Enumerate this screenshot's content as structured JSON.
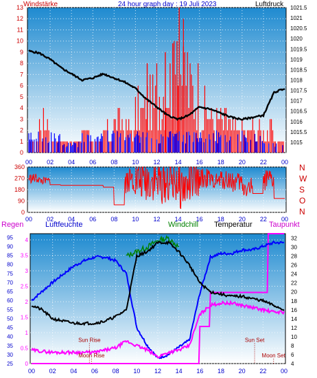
{
  "colors": {
    "wind_speed": "#ff0000",
    "wind_gust": "#0000ff",
    "pressure": "#000000",
    "wind_dir": "#ff0000",
    "humidity": "#0000ff",
    "windchill": "#008000",
    "temperature": "#000000",
    "dewpoint": "#ff00ff",
    "rain": "#ff00ff",
    "sun_moon": "#aa0000",
    "axis_red": "#cc0000",
    "axis_blue": "#0000cc",
    "panel_top": "#1e8ad0",
    "panel_bottom": "#ffffff"
  },
  "chart_data": [
    {
      "type": "bar",
      "title": "24 hour graph day : 19 Juli 2023",
      "left_label": "Windstärke",
      "right_label": "Luftdruck",
      "x_ticks": [
        "00",
        "02",
        "04",
        "06",
        "08",
        "10",
        "12",
        "14",
        "16",
        "18",
        "20",
        "22",
        "00"
      ],
      "left_ticks": [
        "0",
        "1",
        "2",
        "3",
        "4",
        "5",
        "6",
        "7",
        "8",
        "9",
        "10",
        "11",
        "12",
        "13"
      ],
      "right_ticks": [
        "1015",
        "1015.5",
        "1016",
        "1016.5",
        "1017",
        "1017.5",
        "1018",
        "1018.5",
        "1019",
        "1019.5",
        "1020",
        "1020.5",
        "1021",
        "1021.5"
      ],
      "ylim_left": [
        0,
        13
      ],
      "ylim_right": [
        1014.5,
        1021.5
      ],
      "grid": true,
      "wind_speed_hourly": [
        1,
        3,
        1,
        1,
        1,
        2,
        1,
        2,
        3,
        2,
        4,
        5,
        6,
        7,
        8,
        6,
        4,
        3,
        3,
        2,
        2,
        2,
        2,
        1,
        1
      ],
      "wind_gust_hourly": [
        2,
        2,
        2,
        1,
        1,
        2,
        2,
        2,
        2,
        2,
        2,
        2,
        2,
        2,
        2,
        2,
        2,
        2,
        2,
        2,
        2,
        2,
        1,
        1,
        1
      ],
      "pressure_series": [
        {
          "h": 0,
          "v": 1019.4
        },
        {
          "h": 1,
          "v": 1019.3
        },
        {
          "h": 2,
          "v": 1019.0
        },
        {
          "h": 3,
          "v": 1018.6
        },
        {
          "h": 4,
          "v": 1018.3
        },
        {
          "h": 5,
          "v": 1018.0
        },
        {
          "h": 6,
          "v": 1018.1
        },
        {
          "h": 7,
          "v": 1018.3
        },
        {
          "h": 8,
          "v": 1018.1
        },
        {
          "h": 9,
          "v": 1017.9
        },
        {
          "h": 10,
          "v": 1017.6
        },
        {
          "h": 11,
          "v": 1017.1
        },
        {
          "h": 12,
          "v": 1016.7
        },
        {
          "h": 13,
          "v": 1016.3
        },
        {
          "h": 14,
          "v": 1016.1
        },
        {
          "h": 15,
          "v": 1016.3
        },
        {
          "h": 16,
          "v": 1016.7
        },
        {
          "h": 17,
          "v": 1016.6
        },
        {
          "h": 18,
          "v": 1016.4
        },
        {
          "h": 19,
          "v": 1016.2
        },
        {
          "h": 20,
          "v": 1016.1
        },
        {
          "h": 21,
          "v": 1016.2
        },
        {
          "h": 22,
          "v": 1016.3
        },
        {
          "h": 23,
          "v": 1017.4
        },
        {
          "h": 24,
          "v": 1017.6
        }
      ]
    },
    {
      "type": "scatter",
      "title": "",
      "y_ticks": [
        "0",
        "90",
        "180",
        "270",
        "360"
      ],
      "direction_labels": [
        "N",
        "W",
        "S",
        "O",
        "N"
      ],
      "ylim": [
        0,
        360
      ],
      "x_ticks": [
        "00",
        "02",
        "04",
        "06",
        "08",
        "10",
        "12",
        "14",
        "16",
        "18",
        "20",
        "22",
        "00"
      ],
      "direction_hourly_mean": [
        270,
        250,
        220,
        215,
        215,
        215,
        215,
        200,
        60,
        260,
        250,
        260,
        240,
        250,
        200,
        230,
        270,
        250,
        260,
        240,
        200,
        150,
        250,
        110,
        120
      ],
      "direction_hourly_spread": [
        40,
        30,
        0,
        0,
        0,
        0,
        0,
        0,
        0,
        110,
        160,
        180,
        180,
        180,
        180,
        150,
        80,
        60,
        80,
        80,
        90,
        0,
        90,
        0,
        0
      ]
    },
    {
      "type": "line",
      "labels": {
        "rain": "Regen",
        "humidity": "Luftfeuchte",
        "windchill": "Windchill",
        "temperature": "Temperatur",
        "dewpoint": "Taupunkt"
      },
      "rain_ticks": [
        "0",
        "0.5",
        "1",
        "1.5",
        "2",
        "2.5",
        "3",
        "3.5",
        "4"
      ],
      "hum_ticks": [
        "25",
        "30",
        "35",
        "40",
        "45",
        "50",
        "55",
        "60",
        "65",
        "70",
        "75",
        "80",
        "85",
        "90",
        "95"
      ],
      "temp_ticks": [
        "4",
        "6",
        "8",
        "10",
        "12",
        "14",
        "16",
        "18",
        "20",
        "22",
        "24",
        "26",
        "28",
        "30",
        "32"
      ],
      "x_ticks": [
        "00",
        "02",
        "04",
        "06",
        "08",
        "10",
        "12",
        "14",
        "16",
        "18",
        "20",
        "22",
        "00"
      ],
      "ylim_rain": [
        0,
        4.2
      ],
      "ylim_hum": [
        25,
        97
      ],
      "ylim_temp": [
        4,
        33
      ],
      "humidity": [
        {
          "h": 0,
          "v": 60
        },
        {
          "h": 2,
          "v": 70
        },
        {
          "h": 4,
          "v": 79
        },
        {
          "h": 5,
          "v": 82
        },
        {
          "h": 6,
          "v": 84
        },
        {
          "h": 7,
          "v": 84
        },
        {
          "h": 8,
          "v": 82
        },
        {
          "h": 9,
          "v": 75
        },
        {
          "h": 10,
          "v": 45
        },
        {
          "h": 11,
          "v": 35
        },
        {
          "h": 12,
          "v": 28
        },
        {
          "h": 13,
          "v": 30
        },
        {
          "h": 14,
          "v": 34
        },
        {
          "h": 15,
          "v": 38
        },
        {
          "h": 16,
          "v": 64
        },
        {
          "h": 17,
          "v": 84
        },
        {
          "h": 18,
          "v": 86
        },
        {
          "h": 19,
          "v": 86
        },
        {
          "h": 20,
          "v": 88
        },
        {
          "h": 21,
          "v": 88
        },
        {
          "h": 22,
          "v": 90
        },
        {
          "h": 23,
          "v": 92
        },
        {
          "h": 24,
          "v": 92
        }
      ],
      "temperature": [
        {
          "h": 0,
          "v": 17
        },
        {
          "h": 1,
          "v": 16
        },
        {
          "h": 2,
          "v": 14
        },
        {
          "h": 3,
          "v": 13.5
        },
        {
          "h": 4,
          "v": 13
        },
        {
          "h": 5,
          "v": 13
        },
        {
          "h": 6,
          "v": 13
        },
        {
          "h": 7,
          "v": 13.5
        },
        {
          "h": 8,
          "v": 14.5
        },
        {
          "h": 9,
          "v": 16
        },
        {
          "h": 10,
          "v": 28
        },
        {
          "h": 11,
          "v": 29
        },
        {
          "h": 12,
          "v": 31
        },
        {
          "h": 13,
          "v": 31
        },
        {
          "h": 14,
          "v": 29
        },
        {
          "h": 15,
          "v": 26
        },
        {
          "h": 16,
          "v": 22
        },
        {
          "h": 17,
          "v": 20
        },
        {
          "h": 18,
          "v": 19.5
        },
        {
          "h": 19,
          "v": 19
        },
        {
          "h": 20,
          "v": 19
        },
        {
          "h": 21,
          "v": 18.5
        },
        {
          "h": 22,
          "v": 18
        },
        {
          "h": 23,
          "v": 17
        },
        {
          "h": 24,
          "v": 16
        }
      ],
      "windchill": [
        {
          "h": 9,
          "v": 28
        },
        {
          "h": 10,
          "v": 29
        },
        {
          "h": 11,
          "v": 30
        },
        {
          "h": 12,
          "v": 31.5
        },
        {
          "h": 13,
          "v": 32
        },
        {
          "h": 14,
          "v": 30
        }
      ],
      "dewpoint": [
        {
          "h": 0,
          "v": 7
        },
        {
          "h": 2,
          "v": 6.5
        },
        {
          "h": 4,
          "v": 6.5
        },
        {
          "h": 6,
          "v": 6.5
        },
        {
          "h": 7,
          "v": 7
        },
        {
          "h": 8,
          "v": 7.5
        },
        {
          "h": 9,
          "v": 9
        },
        {
          "h": 10,
          "v": 8
        },
        {
          "h": 11,
          "v": 7
        },
        {
          "h": 12,
          "v": 5.5
        },
        {
          "h": 13,
          "v": 6.5
        },
        {
          "h": 14,
          "v": 7
        },
        {
          "h": 15,
          "v": 8
        },
        {
          "h": 16,
          "v": 15
        },
        {
          "h": 17,
          "v": 17
        },
        {
          "h": 18,
          "v": 17.5
        },
        {
          "h": 19,
          "v": 17.5
        },
        {
          "h": 20,
          "v": 17
        },
        {
          "h": 21,
          "v": 16.5
        },
        {
          "h": 22,
          "v": 16
        },
        {
          "h": 23,
          "v": 15.5
        },
        {
          "h": 24,
          "v": 15.5
        }
      ],
      "rain_cumulative": [
        {
          "h": 0,
          "v": 0
        },
        {
          "h": 15.9,
          "v": 0
        },
        {
          "h": 16,
          "v": 1.2
        },
        {
          "h": 16.9,
          "v": 1.2
        },
        {
          "h": 17,
          "v": 2.3
        },
        {
          "h": 22.4,
          "v": 2.3
        },
        {
          "h": 22.5,
          "v": 4.2
        },
        {
          "h": 24,
          "v": 4.2
        }
      ],
      "events": [
        {
          "label": "Sun Rise",
          "h": 5.5,
          "v": 0.7
        },
        {
          "label": "Moon Rise",
          "h": 5.7,
          "v": 0.2
        },
        {
          "label": "Sun Set",
          "h": 21.2,
          "v": 0.7
        },
        {
          "label": "Moon Set",
          "h": 23.0,
          "v": 0.2
        }
      ]
    }
  ]
}
